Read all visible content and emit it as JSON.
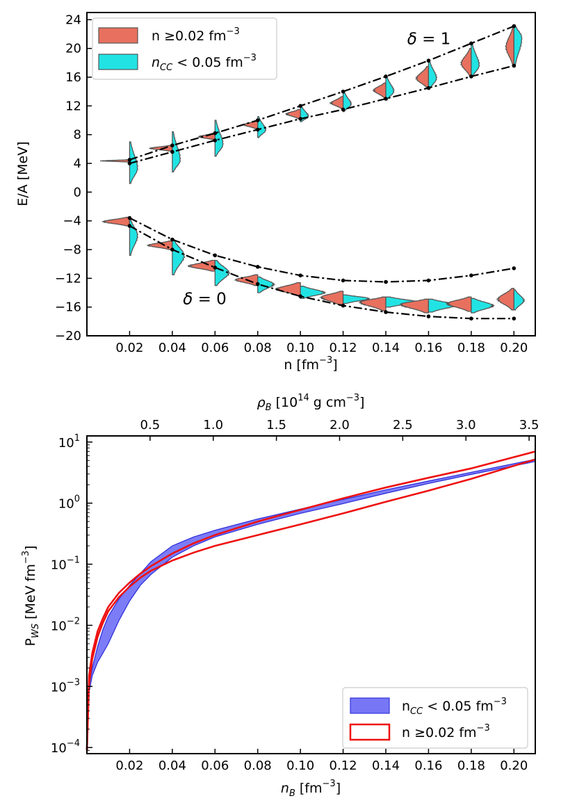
{
  "chart_data": [
    {
      "type": "violin",
      "title": "",
      "xlabel": "n [fm",
      "xlabel_sup": "−3",
      "xlabel_end": "]",
      "ylabel": "E/A [MeV]",
      "xlim": [
        0.0,
        0.21
      ],
      "ylim": [
        -20,
        25
      ],
      "xticks": [
        "0.02",
        "0.04",
        "0.06",
        "0.08",
        "0.10",
        "0.12",
        "0.14",
        "0.16",
        "0.18",
        "0.20"
      ],
      "xtick_values": [
        0.02,
        0.04,
        0.06,
        0.08,
        0.1,
        0.12,
        0.14,
        0.16,
        0.18,
        0.2
      ],
      "yticks": [
        "−20",
        "−16",
        "−12",
        "−8",
        "−4",
        "0",
        "4",
        "8",
        "12",
        "16",
        "20",
        "24"
      ],
      "ytick_values": [
        -20,
        -16,
        -12,
        -8,
        -4,
        0,
        4,
        8,
        12,
        16,
        20,
        24
      ],
      "legend": [
        {
          "label": "n ≥0.02 fm",
          "sup": "−3",
          "color": "#e8705e"
        },
        {
          "label_pre": "n",
          "label_sub": "CC",
          "label_post": " < 0.05 fm",
          "sup": "−3",
          "color": "#22e3e3"
        }
      ],
      "annotations": [
        {
          "text_pre": "δ",
          "text_post": " = 1",
          "x": 0.15,
          "y": 20.6
        },
        {
          "text_pre": "δ",
          "text_post": " = 0",
          "x": 0.045,
          "y": -15.6
        }
      ],
      "violins_delta1": {
        "n": [
          0.02,
          0.04,
          0.06,
          0.08,
          0.1,
          0.12,
          0.14,
          0.16,
          0.18,
          0.2
        ],
        "left_min": [
          4.2,
          5.7,
          7.3,
          8.8,
          10.2,
          11.6,
          13.1,
          14.5,
          16.1,
          17.6
        ],
        "left_max": [
          4.5,
          6.5,
          8.2,
          9.9,
          11.5,
          13.3,
          15.2,
          17.5,
          20.0,
          23.0
        ],
        "left_peak": [
          4.35,
          6.1,
          7.7,
          9.4,
          10.9,
          12.4,
          14.2,
          15.8,
          17.9,
          20.2
        ],
        "left_width": [
          0.014,
          0.011,
          0.008,
          0.007,
          0.007,
          0.006,
          0.006,
          0.006,
          0.005,
          0.004
        ],
        "right_min": [
          1.2,
          2.8,
          5.0,
          7.6,
          9.8,
          11.2,
          12.8,
          14.3,
          16.0,
          17.4
        ],
        "right_max": [
          7.0,
          8.4,
          10.0,
          10.5,
          12.0,
          14.0,
          16.1,
          18.3,
          20.7,
          23.3
        ],
        "right_peak": [
          3.3,
          4.4,
          6.6,
          8.6,
          10.5,
          12.2,
          14.0,
          15.8,
          17.6,
          21.5
        ],
        "right_width": [
          0.004,
          0.004,
          0.004,
          0.004,
          0.004,
          0.004,
          0.004,
          0.004,
          0.004,
          0.004
        ]
      },
      "violins_delta0": {
        "n": [
          0.02,
          0.04,
          0.06,
          0.08,
          0.1,
          0.12,
          0.14,
          0.16,
          0.18,
          0.2
        ],
        "left_min": [
          -4.7,
          -8.0,
          -11.0,
          -13.0,
          -14.4,
          -15.8,
          -16.5,
          -16.8,
          -16.6,
          -16.4
        ],
        "left_max": [
          -3.5,
          -6.8,
          -9.5,
          -11.5,
          -12.6,
          -13.8,
          -14.6,
          -14.9,
          -14.6,
          -13.4
        ],
        "left_peak": [
          -4.1,
          -7.4,
          -10.3,
          -12.2,
          -13.5,
          -14.6,
          -15.3,
          -15.6,
          -15.5,
          -14.9
        ],
        "left_width": [
          0.013,
          0.012,
          0.013,
          0.011,
          0.012,
          0.011,
          0.013,
          0.014,
          0.012,
          0.008
        ],
        "right_min": [
          -8.8,
          -11.5,
          -13.0,
          -14.0,
          -14.8,
          -15.5,
          -16.0,
          -16.7,
          -16.8,
          -16.4
        ],
        "right_max": [
          -3.8,
          -6.6,
          -9.5,
          -11.8,
          -13.1,
          -14.3,
          -14.6,
          -14.9,
          -14.8,
          -13.6
        ],
        "right_peak": [
          -6.0,
          -8.8,
          -11.2,
          -12.8,
          -14.0,
          -14.8,
          -15.3,
          -15.7,
          -15.8,
          -15.1
        ],
        "right_width": [
          0.004,
          0.006,
          0.007,
          0.008,
          0.012,
          0.013,
          0.016,
          0.014,
          0.011,
          0.005
        ]
      },
      "bounds": [
        {
          "name": "delta1-upper",
          "n": [
            0.02,
            0.04,
            0.06,
            0.08,
            0.1,
            0.12,
            0.14,
            0.16,
            0.18,
            0.2
          ],
          "e": [
            4.5,
            6.5,
            8.2,
            10.0,
            12.0,
            14.0,
            16.1,
            18.3,
            20.7,
            23.1
          ]
        },
        {
          "name": "delta1-lower",
          "n": [
            0.02,
            0.04,
            0.06,
            0.08,
            0.1,
            0.12,
            0.14,
            0.16,
            0.18,
            0.2
          ],
          "e": [
            4.0,
            5.6,
            7.2,
            8.7,
            10.2,
            11.5,
            13.0,
            14.5,
            16.1,
            17.6
          ]
        },
        {
          "name": "delta0-upper",
          "n": [
            0.02,
            0.04,
            0.06,
            0.08,
            0.1,
            0.12,
            0.14,
            0.16,
            0.18,
            0.2
          ],
          "e": [
            -3.6,
            -6.6,
            -8.8,
            -10.4,
            -11.6,
            -12.3,
            -12.5,
            -12.3,
            -11.6,
            -10.6
          ]
        },
        {
          "name": "delta0-lower",
          "n": [
            0.02,
            0.04,
            0.06,
            0.08,
            0.1,
            0.12,
            0.14,
            0.16,
            0.18,
            0.2
          ],
          "e": [
            -4.7,
            -8.0,
            -10.5,
            -12.8,
            -14.5,
            -15.8,
            -16.7,
            -17.3,
            -17.6,
            -17.6
          ]
        }
      ]
    },
    {
      "type": "area",
      "yscale": "log",
      "xlabel_pre": "n",
      "xlabel_sub": "B",
      "xlabel_post": " [fm",
      "xlabel_sup": "−3",
      "xlabel_end": "]",
      "ylabel_pre": "P",
      "ylabel_sub": "WS",
      "ylabel_post": " [MeV fm",
      "ylabel_sup": "−3",
      "ylabel_end": "]",
      "top_xlabel_pre": "ρ",
      "top_xlabel_sub": "B",
      "top_xlabel_post": " [10",
      "top_xlabel_sup": "14",
      "top_xlabel_end": " g cm",
      "top_xlabel_sup2": "−3",
      "top_xlabel_end2": "]",
      "xlim": [
        0.0,
        0.21
      ],
      "ylim_log10": [
        -4.1,
        1.1
      ],
      "xticks": [
        "0.02",
        "0.04",
        "0.06",
        "0.08",
        "0.10",
        "0.12",
        "0.14",
        "0.16",
        "0.18",
        "0.20"
      ],
      "xtick_values": [
        0.02,
        0.04,
        0.06,
        0.08,
        0.1,
        0.12,
        0.14,
        0.16,
        0.18,
        0.2
      ],
      "top_xticks": [
        "0.5",
        "1.0",
        "1.5",
        "2.0",
        "2.5",
        "3.0",
        "3.5"
      ],
      "top_xtick_values": [
        0.5,
        1.0,
        1.5,
        2.0,
        2.5,
        3.0,
        3.5
      ],
      "top_conversion_per_fm3": 16.9,
      "yticks_base": "10",
      "yticks_exp": [
        "−4",
        "−3",
        "−2",
        "−1",
        "0",
        "1"
      ],
      "ytick_values_log10": [
        -4,
        -3,
        -2,
        -1,
        0,
        1
      ],
      "legend": [
        {
          "label_pre": "n",
          "label_sub": "CC",
          "label_post": " < 0.05 fm",
          "sup": "−3",
          "color": "#5f5ff5",
          "style": "filled"
        },
        {
          "label": "n ≥0.02 fm",
          "sup": "−3",
          "color": "#ee1111",
          "style": "outline"
        }
      ],
      "series": [
        {
          "name": "n_CC < 0.05 fm^-3 (band)",
          "x": [
            0.0,
            0.001,
            0.0025,
            0.005,
            0.0075,
            0.01,
            0.015,
            0.02,
            0.025,
            0.03,
            0.04,
            0.05,
            0.06,
            0.08,
            0.1,
            0.12,
            0.14,
            0.16,
            0.18,
            0.21
          ],
          "upper": [
            9e-05,
            0.001,
            0.002,
            0.0045,
            0.0085,
            0.014,
            0.027,
            0.045,
            0.07,
            0.11,
            0.2,
            0.28,
            0.36,
            0.55,
            0.8,
            1.15,
            1.65,
            2.3,
            3.2,
            5.2
          ],
          "lower": [
            9e-05,
            0.0008,
            0.0015,
            0.0025,
            0.0035,
            0.005,
            0.012,
            0.025,
            0.045,
            0.068,
            0.13,
            0.2,
            0.28,
            0.45,
            0.68,
            0.98,
            1.45,
            2.1,
            2.95,
            4.8
          ]
        },
        {
          "name": "n >= 0.02 fm^-3 (envelope)",
          "x": [
            0.0,
            0.001,
            0.0025,
            0.005,
            0.0075,
            0.01,
            0.015,
            0.02,
            0.025,
            0.03,
            0.04,
            0.05,
            0.06,
            0.08,
            0.1,
            0.12,
            0.14,
            0.16,
            0.18,
            0.21
          ],
          "upper": [
            9e-05,
            0.0015,
            0.0035,
            0.008,
            0.013,
            0.02,
            0.034,
            0.05,
            0.07,
            0.093,
            0.15,
            0.22,
            0.3,
            0.5,
            0.78,
            1.2,
            1.8,
            2.6,
            3.7,
            7.0
          ],
          "lower": [
            9e-05,
            0.0011,
            0.0028,
            0.0065,
            0.011,
            0.017,
            0.029,
            0.043,
            0.06,
            0.078,
            0.115,
            0.155,
            0.2,
            0.3,
            0.45,
            0.68,
            1.05,
            1.6,
            2.5,
            5.2
          ]
        }
      ]
    }
  ]
}
